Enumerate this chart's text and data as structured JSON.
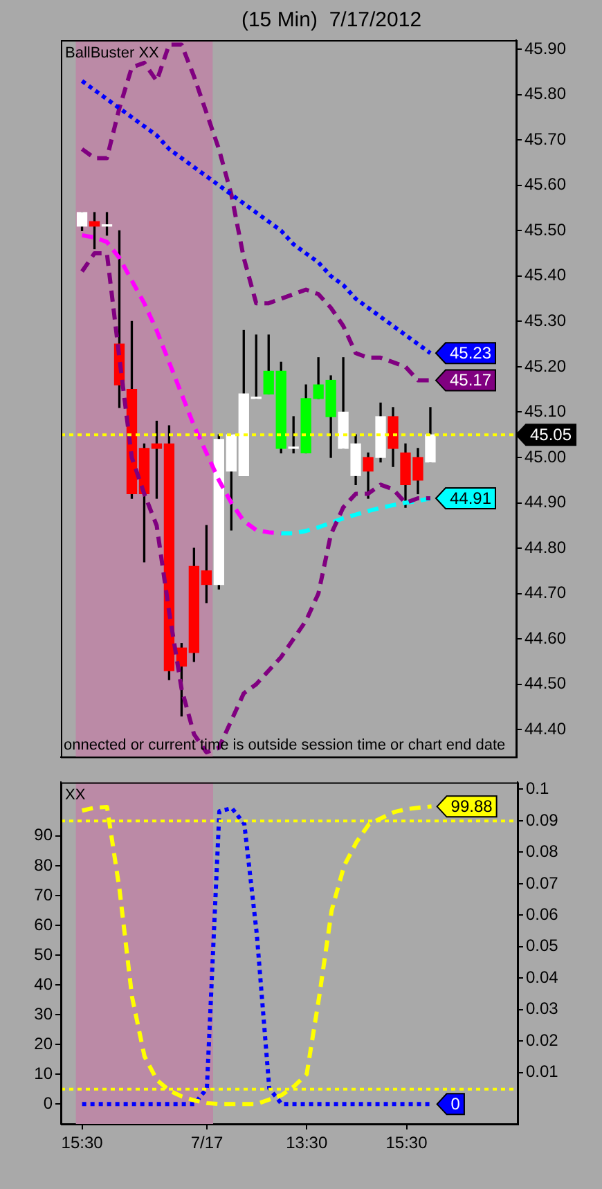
{
  "chart_data": [
    {
      "type": "candlestick",
      "title": "(15 Min)  7/17/2012",
      "tick_labels": "y",
      "categories": [
        "15:30",
        null,
        null,
        null,
        null,
        null,
        null,
        null,
        null,
        null,
        "7/17",
        null,
        null,
        null,
        null,
        null,
        null,
        null,
        "13:30",
        null,
        null,
        null,
        null,
        null,
        null,
        null,
        "15:30",
        null,
        null
      ],
      "ohlc": [
        [
          45.51,
          45.54,
          45.5,
          45.54
        ],
        [
          45.52,
          45.54,
          45.46,
          45.51
        ],
        [
          45.51,
          45.54,
          45.49,
          45.51
        ],
        [
          45.25,
          45.5,
          45.11,
          45.16
        ],
        [
          45.15,
          45.3,
          44.91,
          44.92
        ],
        [
          45.02,
          45.03,
          44.77,
          44.92
        ],
        [
          45.03,
          45.08,
          44.91,
          45.02
        ],
        [
          45.03,
          45.07,
          44.51,
          44.53
        ],
        [
          44.58,
          44.59,
          44.43,
          44.54
        ],
        [
          44.76,
          44.8,
          44.55,
          44.57
        ],
        [
          44.75,
          44.85,
          44.68,
          44.72
        ],
        [
          44.72,
          45.05,
          44.71,
          45.04
        ],
        [
          44.97,
          45.05,
          44.84,
          45.05
        ],
        [
          44.96,
          45.28,
          44.96,
          45.14
        ],
        [
          45.13,
          45.27,
          45.13,
          45.13
        ],
        [
          45.14,
          45.27,
          45.14,
          45.19
        ],
        [
          45.02,
          45.21,
          45.01,
          45.19
        ],
        [
          45.02,
          45.09,
          45.01,
          45.02
        ],
        [
          45.01,
          45.16,
          45.01,
          45.13
        ],
        [
          45.13,
          45.22,
          45.13,
          45.16
        ],
        [
          45.09,
          45.18,
          45.0,
          45.17
        ],
        [
          45.02,
          45.22,
          45.02,
          45.1
        ],
        [
          44.96,
          45.05,
          44.94,
          45.03
        ],
        [
          45.0,
          45.01,
          44.91,
          44.97
        ],
        [
          45.0,
          45.12,
          44.99,
          45.09
        ],
        [
          45.09,
          45.11,
          44.98,
          45.02
        ],
        [
          45.01,
          45.03,
          44.89,
          44.94
        ],
        [
          45.0,
          45.02,
          44.92,
          44.95
        ],
        [
          44.99,
          45.11,
          44.99,
          45.05
        ]
      ],
      "colors": [
        "#ffffff",
        "#ff0000",
        "#ffffff",
        "#ff0000",
        "#ff0000",
        "#ff0000",
        "#ff0000",
        "#ff0000",
        "#ff0000",
        "#ff0000",
        "#ff0000",
        "#ffffff",
        "#ffffff",
        "#ffffff",
        "#ffffff",
        "#00ff00",
        "#00ff00",
        "#ffffff",
        "#00ff00",
        "#00ff00",
        "#00ff00",
        "#ffffff",
        "#ffffff",
        "#ff0000",
        "#ffffff",
        "#ff0000",
        "#ff0000",
        "#ff0000",
        "#ffffff"
      ],
      "series": [
        {
          "type": "line",
          "color": "#0000ff",
          "line_style": "dotted",
          "values": [
            45.83,
            45.81,
            45.79,
            45.77,
            45.75,
            45.73,
            45.71,
            45.68,
            45.66,
            45.64,
            45.62,
            45.6,
            45.58,
            45.56,
            45.54,
            45.52,
            45.5,
            45.47,
            45.45,
            45.43,
            45.4,
            45.38,
            45.35,
            45.33,
            45.31,
            45.29,
            45.27,
            45.25,
            45.23
          ],
          "value_labels": [
            null,
            null,
            null,
            null,
            null,
            null,
            null,
            null,
            null,
            null,
            null,
            null,
            null,
            null,
            null,
            null,
            null,
            null,
            null,
            null,
            null,
            null,
            null,
            null,
            null,
            null,
            null,
            null,
            "45.23"
          ]
        },
        {
          "type": "line",
          "color": "#800080",
          "line_style": "dashed",
          "values": [
            45.68,
            45.66,
            45.66,
            45.77,
            45.86,
            45.87,
            45.83,
            45.91,
            45.91,
            45.84,
            45.76,
            45.68,
            45.58,
            45.44,
            45.34,
            45.34,
            45.35,
            45.36,
            45.37,
            45.36,
            45.33,
            45.29,
            45.23,
            45.22,
            45.22,
            45.21,
            45.2,
            45.17,
            45.17
          ],
          "value_labels": [
            null,
            null,
            null,
            null,
            null,
            null,
            null,
            null,
            null,
            null,
            null,
            null,
            null,
            null,
            null,
            null,
            null,
            null,
            null,
            null,
            null,
            null,
            null,
            null,
            null,
            null,
            null,
            null,
            "45.17"
          ]
        },
        {
          "type": "line",
          "color": "#800080",
          "line_style": "dashed",
          "values": [
            45.41,
            45.45,
            45.45,
            45.22,
            45.0,
            44.92,
            44.85,
            44.66,
            44.49,
            44.39,
            44.35,
            44.36,
            44.42,
            44.48,
            44.5,
            44.53,
            44.56,
            44.6,
            44.64,
            44.7,
            44.83,
            44.89,
            44.92,
            44.92,
            44.94,
            44.93,
            44.9,
            44.91,
            44.91
          ]
        },
        {
          "type": "line",
          "color": "#ff00ff",
          "line_style": "dashed",
          "values": [
            45.49,
            45.485,
            45.475,
            45.44,
            45.39,
            45.34,
            45.28,
            45.21,
            45.14,
            45.07,
            45.01,
            44.95,
            44.9,
            44.86,
            44.84,
            44.835,
            44.833,
            null,
            null,
            null,
            null,
            null,
            null,
            null,
            null,
            null,
            null,
            null,
            null
          ]
        },
        {
          "type": "line",
          "color": "#00ffff",
          "line_style": "dashed",
          "values": [
            null,
            null,
            null,
            null,
            null,
            null,
            null,
            null,
            null,
            null,
            null,
            null,
            null,
            null,
            null,
            null,
            44.833,
            44.833,
            44.838,
            44.846,
            44.856,
            44.866,
            44.874,
            44.882,
            44.889,
            44.895,
            44.9,
            44.904,
            44.91
          ],
          "value_labels": [
            null,
            null,
            null,
            null,
            null,
            null,
            null,
            null,
            null,
            null,
            null,
            null,
            null,
            null,
            null,
            null,
            null,
            null,
            null,
            null,
            null,
            null,
            null,
            null,
            null,
            null,
            null,
            null,
            "44.91"
          ]
        }
      ],
      "ylim": [
        44.34,
        45.92
      ],
      "yticks": [
        {
          "value": 44.4,
          "label": "44.40"
        },
        {
          "value": 44.5,
          "label": "44.50"
        },
        {
          "value": 44.6,
          "label": "44.60"
        },
        {
          "value": 44.7,
          "label": "44.70"
        },
        {
          "value": 44.8,
          "label": "44.80"
        },
        {
          "value": 44.9,
          "label": "44.90"
        },
        {
          "value": 45.0,
          "label": "45.00"
        },
        {
          "value": 45.1,
          "label": "45.10"
        },
        {
          "value": 45.2,
          "label": "45.20"
        },
        {
          "value": 45.3,
          "label": "45.30"
        },
        {
          "value": 45.4,
          "label": "45.40"
        },
        {
          "value": 45.5,
          "label": "45.50"
        },
        {
          "value": 45.6,
          "label": "45.60"
        },
        {
          "value": 45.7,
          "label": "45.70"
        },
        {
          "value": 45.8,
          "label": "45.80"
        },
        {
          "value": 45.9,
          "label": "45.90"
        }
      ],
      "ref_lines": [
        {
          "axis": "y",
          "value": 45.05,
          "label": "45.05",
          "color": "#ffff00",
          "line_style": "dotted"
        }
      ],
      "bands": [
        {
          "axis": "x",
          "from": "15:30",
          "to": "7/17",
          "color": "#bb8aa6"
        }
      ],
      "annotations": [
        "BallBuster XX",
        "onnected or current time is outside session time or chart end date"
      ]
    },
    {
      "type": "line",
      "categories": [
        "15:30",
        null,
        null,
        null,
        null,
        null,
        null,
        null,
        null,
        null,
        "7/17",
        null,
        null,
        null,
        null,
        null,
        null,
        null,
        "13:30",
        null,
        null,
        null,
        null,
        null,
        null,
        null,
        "15:30",
        null,
        null
      ],
      "series": [
        {
          "color": "#ffff00",
          "line_style": "dashed",
          "values": [
            98.5,
            99.5,
            99.7,
            72,
            36,
            16,
            8,
            4.5,
            2.5,
            1.2,
            0.3,
            0,
            0,
            0,
            0,
            1.5,
            3,
            6,
            10,
            36,
            65,
            80,
            88,
            94,
            96,
            98,
            99,
            99.5,
            99.88
          ],
          "value_labels": [
            null,
            null,
            null,
            null,
            null,
            null,
            null,
            null,
            null,
            null,
            null,
            null,
            null,
            null,
            null,
            null,
            null,
            null,
            null,
            null,
            null,
            null,
            null,
            null,
            null,
            null,
            null,
            null,
            "99.88"
          ]
        },
        {
          "color": "#0000ff",
          "line_style": "dotted",
          "axis": "y2",
          "values": [
            0,
            0,
            0,
            0,
            0,
            0,
            0,
            0,
            0,
            0,
            0.005,
            0.093,
            0.094,
            0.089,
            0.054,
            0.005,
            0,
            0,
            0,
            0,
            0,
            0,
            0,
            0,
            0,
            0,
            0,
            0,
            0
          ],
          "value_labels": [
            null,
            null,
            null,
            null,
            null,
            null,
            null,
            null,
            null,
            null,
            null,
            null,
            null,
            null,
            null,
            null,
            null,
            null,
            null,
            null,
            null,
            null,
            null,
            null,
            null,
            null,
            null,
            null,
            "0"
          ]
        }
      ],
      "ylim": [
        -6.7,
        108
      ],
      "yticks": [
        0,
        10,
        20,
        30,
        40,
        50,
        60,
        70,
        80,
        90
      ],
      "y2lim": [
        -0.0063,
        0.1022
      ],
      "y2ticks": [
        0.01,
        0.02,
        0.03,
        0.04,
        0.05,
        0.06,
        0.07,
        0.08,
        0.09,
        0.1
      ],
      "ref_lines": [
        {
          "axis": "y",
          "value": 95,
          "color": "#ffff00",
          "line_style": "dotted"
        },
        {
          "axis": "y",
          "value": 5,
          "color": "#ffff00",
          "line_style": "dotted"
        }
      ],
      "bands": [
        {
          "axis": "x",
          "from": "15:30",
          "to": "7/17",
          "color": "#bb8aa6"
        }
      ],
      "annotations": [
        "XX"
      ]
    }
  ]
}
